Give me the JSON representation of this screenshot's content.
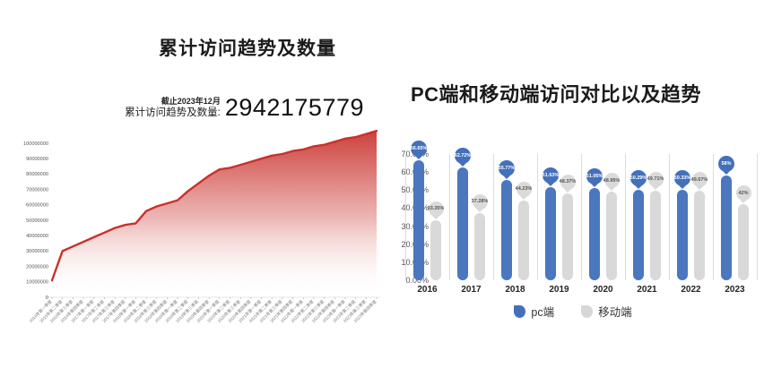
{
  "left_panel": {
    "as_of": "截止2023年12月",
    "kpi_label": "累计访问趋势及数量:",
    "kpi_value": "2942175779"
  },
  "right_panel": {
    "legend": [
      {
        "label": "pc端",
        "color": "#4470bb"
      },
      {
        "label": "移动端",
        "color": "#d7d7d7"
      }
    ]
  },
  "chart_data": [
    {
      "id": "cumulative-visits-area",
      "type": "area",
      "title": "累计访问趋势及数量",
      "line_color": "#c9312c",
      "grid": false,
      "ylim": [
        0,
        110000000
      ],
      "yticks": [
        "0",
        "10000000",
        "20000000",
        "30000000",
        "40000000",
        "50000000",
        "60000000",
        "70000000",
        "80000000",
        "90000000",
        "100000000"
      ],
      "x": [
        "2016年第一季度",
        "2016年第二季度",
        "2016年第三季度",
        "2016年第四季度",
        "2017年第一季度",
        "2017年第二季度",
        "2017年第三季度",
        "2017年第四季度",
        "2018年第一季度",
        "2018年第二季度",
        "2018年第三季度",
        "2018年第四季度",
        "2019年第一季度",
        "2019年第二季度",
        "2019年第三季度",
        "2019年第四季度",
        "2020年第一季度",
        "2020年第二季度",
        "2020年第三季度",
        "2020年第四季度",
        "2021年第一季度",
        "2021年第二季度",
        "2021年第三季度",
        "2021年第四季度",
        "2022年第一季度",
        "2022年第二季度",
        "2022年第三季度",
        "2022年第四季度",
        "2023年第一季度",
        "2023年第二季度",
        "2023年第三季度",
        "2023年第四季度"
      ],
      "values": [
        11000000,
        30000000,
        33000000,
        36000000,
        39000000,
        42000000,
        45000000,
        47000000,
        48000000,
        56000000,
        59000000,
        61000000,
        63000000,
        69000000,
        74000000,
        79000000,
        83000000,
        84000000,
        86000000,
        88000000,
        90000000,
        92000000,
        93000000,
        95000000,
        96000000,
        98000000,
        99000000,
        101000000,
        103000000,
        104000000,
        106000000,
        108000000
      ]
    },
    {
      "id": "pc-vs-mobile-bars",
      "type": "bar",
      "title": "PC端和移动端访问对比以及趋势",
      "categories": [
        "2016",
        "2017",
        "2018",
        "2019",
        "2020",
        "2021",
        "2022",
        "2023"
      ],
      "series": [
        {
          "name": "pc端",
          "color": "#4a77be",
          "values": [
            66.65,
            62.72,
            55.77,
            51.63,
            51.05,
            50.29,
            50.33,
            58
          ]
        },
        {
          "name": "移动端",
          "color": "#d9d9d9",
          "values": [
            33.35,
            37.28,
            44.23,
            48.37,
            48.95,
            49.71,
            49.67,
            42
          ]
        }
      ],
      "value_labels": [
        [
          "66.65%",
          "62.72%",
          "55.77%",
          "51.63%",
          "51.05%",
          "50.29%",
          "50.33%",
          "58%"
        ],
        [
          "33.35%",
          "37.28%",
          "44.23%",
          "48.37%",
          "48.95%",
          "49.71%",
          "49.67%",
          "42%"
        ]
      ],
      "ylim": [
        0,
        70
      ],
      "yticks": [
        "70.00%",
        "60.00%",
        "50.00%",
        "40.00%",
        "30.00%",
        "20.00%",
        "10.00%",
        "0.00%"
      ],
      "legend_position": "bottom"
    }
  ]
}
